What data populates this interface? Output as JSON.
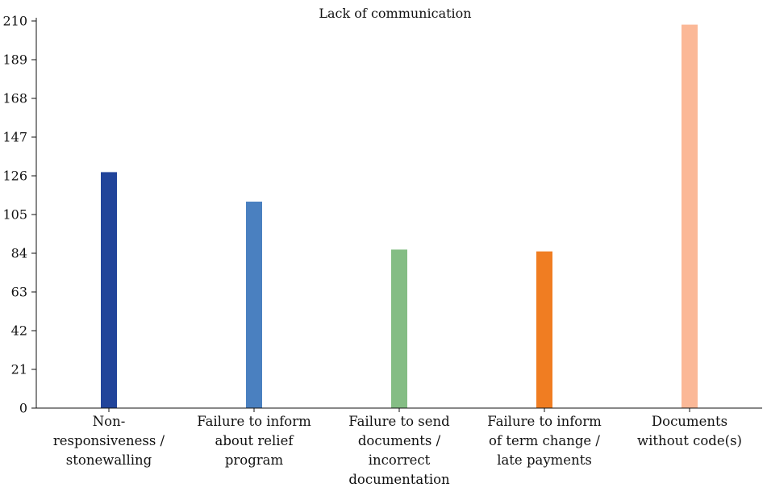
{
  "chart_data": {
    "type": "bar",
    "title": "Lack of communication",
    "xlabel": "",
    "ylabel": "",
    "ylim": [
      0,
      210
    ],
    "yticks": [
      0,
      21,
      42,
      63,
      84,
      105,
      126,
      147,
      168,
      189,
      210
    ],
    "grid": false,
    "categories": [
      [
        "Non-",
        "responsiveness /",
        "stonewalling"
      ],
      [
        "Failure to inform",
        "about relief",
        "program"
      ],
      [
        "Failure to send",
        "documents /",
        "incorrect",
        "documentation"
      ],
      [
        "Failure to inform",
        "of term change /",
        "late payments"
      ],
      [
        "Documents",
        "without code(s)"
      ]
    ],
    "values": [
      128,
      112,
      86,
      85,
      208
    ],
    "colors": [
      "#21449a",
      "#4a80c0",
      "#84bd84",
      "#f07d22",
      "#fbb897"
    ]
  }
}
